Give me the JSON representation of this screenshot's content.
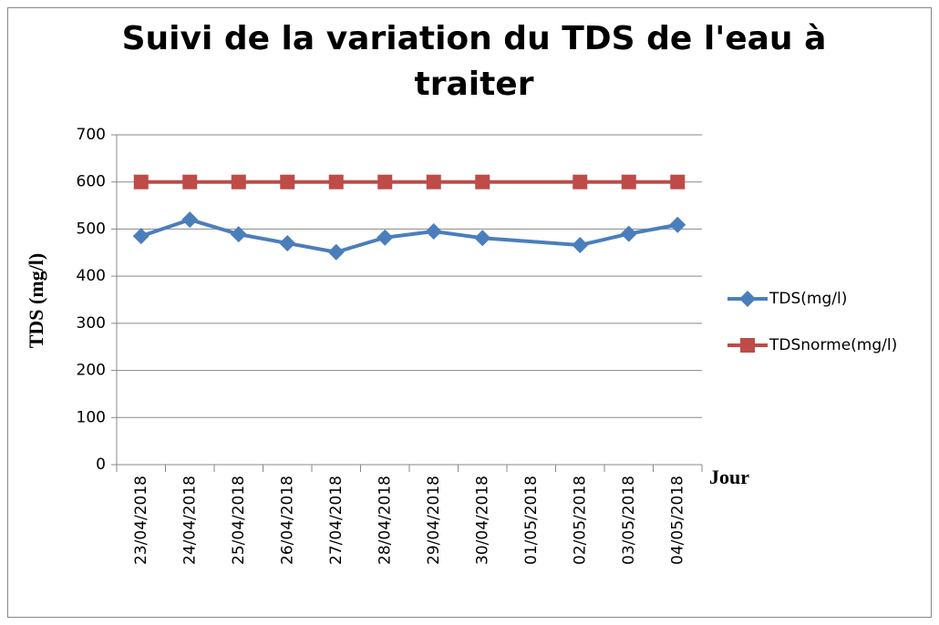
{
  "chart_data": {
    "type": "line",
    "title": "Suivi de la variation du TDS de l'eau à traiter",
    "x_label": "Jour",
    "y_label": "TDS (mg/l)",
    "categories": [
      "23/04/2018",
      "24/04/2018",
      "25/04/2018",
      "26/04/2018",
      "27/04/2018",
      "28/04/2018",
      "29/04/2018",
      "30/04/2018",
      "01/05/2018",
      "02/05/2018",
      "03/05/2018",
      "04/05/2018"
    ],
    "series": [
      {
        "name": "TDS(mg/l)",
        "color": "#4a7ebb",
        "marker": "diamond",
        "values": [
          485,
          520,
          489,
          470,
          451,
          482,
          495,
          481,
          null,
          466,
          490,
          509
        ]
      },
      {
        "name": "TDSnorme(mg/l)",
        "color": "#be4b48",
        "marker": "square",
        "values": [
          600,
          600,
          600,
          600,
          600,
          600,
          600,
          600,
          null,
          600,
          600,
          600
        ]
      }
    ],
    "ylim": [
      0,
      700
    ],
    "yticks": [
      0,
      100,
      200,
      300,
      400,
      500,
      600,
      700
    ],
    "grid": true,
    "connect_gaps": true,
    "legend": "right"
  }
}
